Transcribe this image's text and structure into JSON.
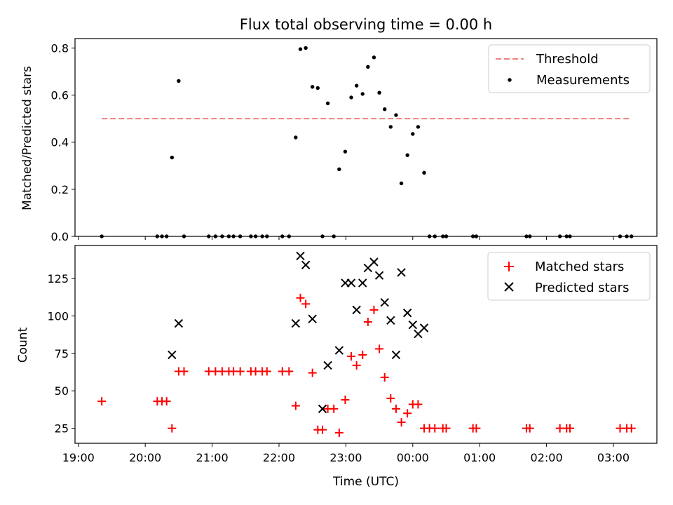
{
  "title": "Flux total observing time = 0.00 h",
  "x_tick_labels": [
    "19:00",
    "20:00",
    "21:00",
    "22:00",
    "23:00",
    "00:00",
    "01:00",
    "02:00",
    "03:00"
  ],
  "chart_data": [
    {
      "type": "scatter",
      "ylabel": "Matched/Predicted stars",
      "xlabel": "",
      "ylim": [
        0,
        0.84
      ],
      "y_ticks": [
        0,
        0.2,
        0.4,
        0.6,
        0.8
      ],
      "y_tick_labels": [
        "0.0",
        "0.2",
        "0.4",
        "0.6",
        "0.8"
      ],
      "x_unit": "hours after 19:00 UTC",
      "xlim": [
        -0.05,
        8.65
      ],
      "legend": {
        "position": "top-right",
        "entries": [
          "Threshold",
          "Measurements"
        ]
      },
      "threshold": {
        "name": "Threshold",
        "value": 0.5,
        "x_range": [
          0.35,
          8.27
        ],
        "color": "#f08080"
      },
      "series": [
        {
          "name": "Measurements",
          "color": "#000000",
          "points": [
            [
              0.35,
              0
            ],
            [
              1.18,
              0
            ],
            [
              1.25,
              0
            ],
            [
              1.32,
              0
            ],
            [
              1.4,
              0.335
            ],
            [
              1.5,
              0.66
            ],
            [
              1.58,
              0
            ],
            [
              1.95,
              0
            ],
            [
              2.05,
              0
            ],
            [
              2.15,
              0
            ],
            [
              2.25,
              0
            ],
            [
              2.32,
              0
            ],
            [
              2.42,
              0
            ],
            [
              2.58,
              0
            ],
            [
              2.65,
              0
            ],
            [
              2.75,
              0
            ],
            [
              2.82,
              0
            ],
            [
              3.05,
              0
            ],
            [
              3.15,
              0
            ],
            [
              3.25,
              0.42
            ],
            [
              3.32,
              0.795
            ],
            [
              3.4,
              0.8
            ],
            [
              3.5,
              0.635
            ],
            [
              3.58,
              0.63
            ],
            [
              3.65,
              0
            ],
            [
              3.73,
              0.565
            ],
            [
              3.82,
              0
            ],
            [
              3.9,
              0.285
            ],
            [
              3.99,
              0.36
            ],
            [
              4.08,
              0.59
            ],
            [
              4.16,
              0.64
            ],
            [
              4.25,
              0.605
            ],
            [
              4.33,
              0.72
            ],
            [
              4.42,
              0.76
            ],
            [
              4.5,
              0.61
            ],
            [
              4.58,
              0.54
            ],
            [
              4.67,
              0.465
            ],
            [
              4.75,
              0.515
            ],
            [
              4.83,
              0.225
            ],
            [
              4.92,
              0.345
            ],
            [
              5.0,
              0.435
            ],
            [
              5.08,
              0.465
            ],
            [
              5.17,
              0.27
            ],
            [
              5.25,
              0
            ],
            [
              5.33,
              0
            ],
            [
              5.45,
              0
            ],
            [
              5.5,
              0
            ],
            [
              5.9,
              0
            ],
            [
              5.95,
              0
            ],
            [
              6.7,
              0
            ],
            [
              6.75,
              0
            ],
            [
              7.2,
              0
            ],
            [
              7.3,
              0
            ],
            [
              7.35,
              0
            ],
            [
              8.1,
              0
            ],
            [
              8.2,
              0
            ],
            [
              8.27,
              0
            ]
          ]
        }
      ]
    },
    {
      "type": "scatter",
      "ylabel": "Count",
      "xlabel": "Time (UTC)",
      "ylim": [
        15,
        147
      ],
      "y_ticks": [
        25,
        50,
        75,
        100,
        125
      ],
      "y_tick_labels": [
        "25",
        "50",
        "75",
        "100",
        "125"
      ],
      "x_unit": "hours after 19:00 UTC",
      "xlim": [
        -0.05,
        8.65
      ],
      "legend": {
        "position": "top-right",
        "entries": [
          "Matched stars",
          "Predicted stars"
        ]
      },
      "series": [
        {
          "name": "Matched stars",
          "marker": "plus",
          "color": "#ff0000",
          "points": [
            [
              0.35,
              43
            ],
            [
              1.18,
              43
            ],
            [
              1.25,
              43
            ],
            [
              1.32,
              43
            ],
            [
              1.4,
              25
            ],
            [
              1.5,
              63
            ],
            [
              1.58,
              63
            ],
            [
              1.95,
              63
            ],
            [
              2.05,
              63
            ],
            [
              2.15,
              63
            ],
            [
              2.25,
              63
            ],
            [
              2.32,
              63
            ],
            [
              2.42,
              63
            ],
            [
              2.58,
              63
            ],
            [
              2.65,
              63
            ],
            [
              2.75,
              63
            ],
            [
              2.82,
              63
            ],
            [
              3.05,
              63
            ],
            [
              3.15,
              63
            ],
            [
              3.25,
              40
            ],
            [
              3.32,
              112
            ],
            [
              3.4,
              108
            ],
            [
              3.5,
              62
            ],
            [
              3.58,
              24
            ],
            [
              3.65,
              24
            ],
            [
              3.73,
              38
            ],
            [
              3.82,
              38
            ],
            [
              3.9,
              22
            ],
            [
              3.99,
              44
            ],
            [
              4.08,
              73
            ],
            [
              4.16,
              67
            ],
            [
              4.25,
              74
            ],
            [
              4.33,
              96
            ],
            [
              4.42,
              104
            ],
            [
              4.5,
              78
            ],
            [
              4.58,
              59
            ],
            [
              4.67,
              45
            ],
            [
              4.75,
              38
            ],
            [
              4.83,
              29
            ],
            [
              4.92,
              35
            ],
            [
              5.0,
              41
            ],
            [
              5.08,
              41
            ],
            [
              5.17,
              25
            ],
            [
              5.25,
              25
            ],
            [
              5.33,
              25
            ],
            [
              5.45,
              25
            ],
            [
              5.5,
              25
            ],
            [
              5.9,
              25
            ],
            [
              5.95,
              25
            ],
            [
              6.7,
              25
            ],
            [
              6.75,
              25
            ],
            [
              7.2,
              25
            ],
            [
              7.3,
              25
            ],
            [
              7.35,
              25
            ],
            [
              8.1,
              25
            ],
            [
              8.2,
              25
            ],
            [
              8.27,
              25
            ]
          ]
        },
        {
          "name": "Predicted stars",
          "marker": "x",
          "color": "#000000",
          "points": [
            [
              1.4,
              74
            ],
            [
              1.5,
              95
            ],
            [
              3.25,
              95
            ],
            [
              3.32,
              140
            ],
            [
              3.4,
              134
            ],
            [
              3.5,
              98
            ],
            [
              3.65,
              38
            ],
            [
              3.73,
              67
            ],
            [
              3.9,
              77
            ],
            [
              3.99,
              122
            ],
            [
              4.08,
              122
            ],
            [
              4.16,
              104
            ],
            [
              4.25,
              122
            ],
            [
              4.33,
              132
            ],
            [
              4.42,
              136
            ],
            [
              4.5,
              127
            ],
            [
              4.58,
              109
            ],
            [
              4.67,
              97
            ],
            [
              4.75,
              74
            ],
            [
              4.83,
              129
            ],
            [
              4.92,
              102
            ],
            [
              5.0,
              94
            ],
            [
              5.08,
              88
            ],
            [
              5.17,
              92
            ]
          ]
        }
      ]
    }
  ]
}
